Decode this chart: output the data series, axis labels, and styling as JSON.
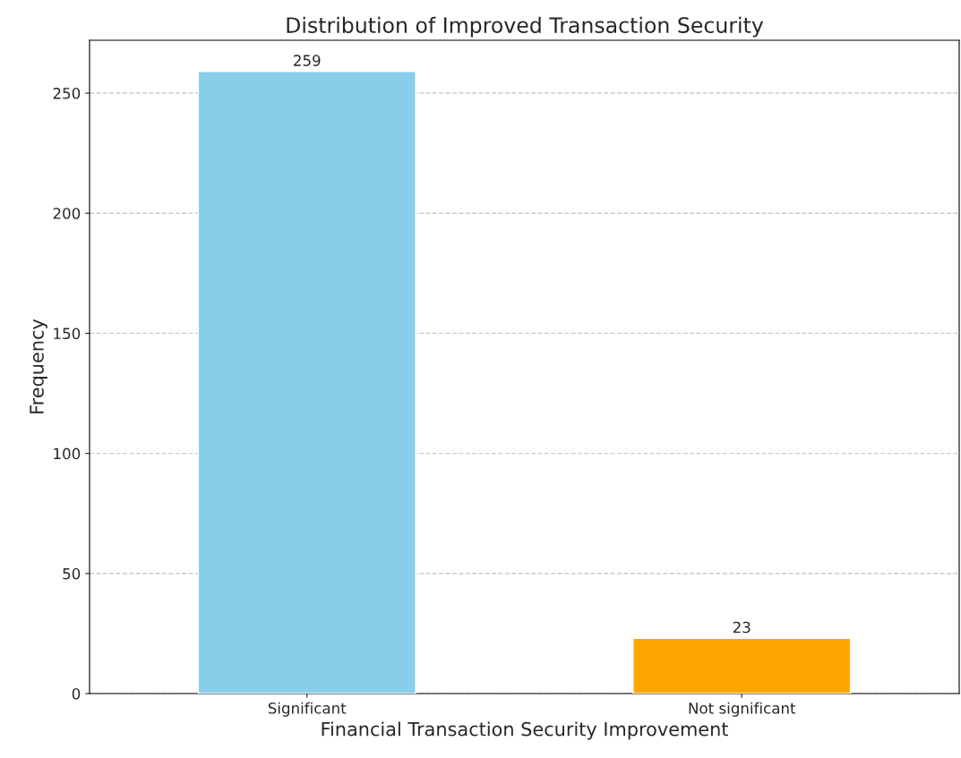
{
  "chart_data": {
    "type": "bar",
    "title": "Distribution of Improved Transaction Security",
    "xlabel": "Financial Transaction Security Improvement",
    "ylabel": "Frequency",
    "categories": [
      "Significant",
      "Not significant"
    ],
    "values": [
      259,
      23
    ],
    "colors": [
      "#87ceeb",
      "#ffa500"
    ],
    "ylim": [
      0,
      272
    ],
    "yticks": [
      0,
      50,
      100,
      150,
      200,
      250
    ],
    "grid": "y",
    "data_labels": true
  }
}
